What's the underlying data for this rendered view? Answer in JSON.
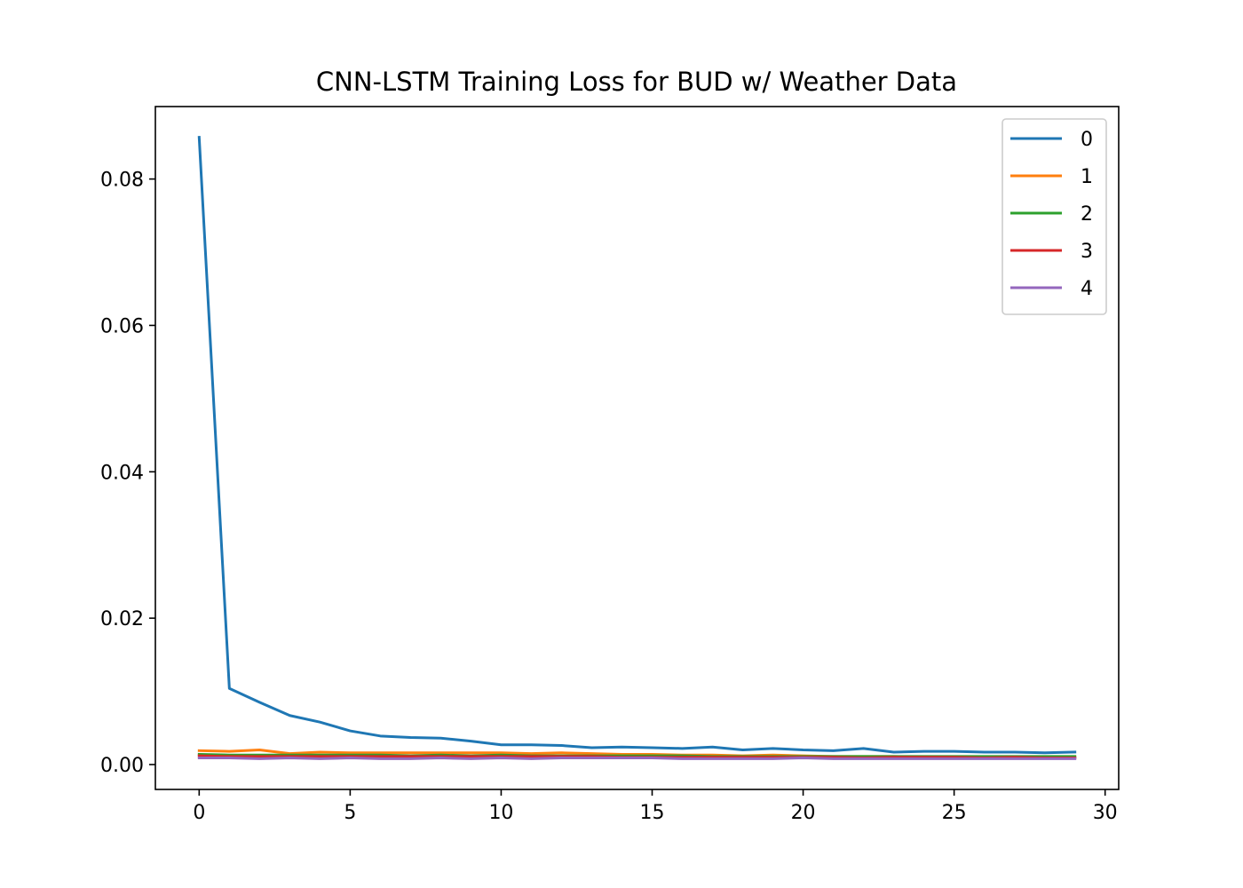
{
  "chart_data": {
    "type": "line",
    "title": "CNN-LSTM Training Loss for BUD w/ Weather Data",
    "xlabel": "",
    "ylabel": "",
    "xlim": [
      -1.45,
      30.45
    ],
    "ylim": [
      -0.0034,
      0.0899
    ],
    "xticks": [
      0,
      5,
      10,
      15,
      20,
      25,
      30
    ],
    "xtick_labels": [
      "0",
      "5",
      "10",
      "15",
      "20",
      "25",
      "30"
    ],
    "yticks": [
      0.0,
      0.02,
      0.04,
      0.06,
      0.08
    ],
    "ytick_labels": [
      "0.00",
      "0.02",
      "0.04",
      "0.06",
      "0.08"
    ],
    "grid": false,
    "legend_position": "top-right",
    "x": [
      0,
      1,
      2,
      3,
      4,
      5,
      6,
      7,
      8,
      9,
      10,
      11,
      12,
      13,
      14,
      15,
      16,
      17,
      18,
      19,
      20,
      21,
      22,
      23,
      24,
      25,
      26,
      27,
      28,
      29
    ],
    "series": [
      {
        "name": "0",
        "color": "#1f77b4",
        "values": [
          0.0857,
          0.0104,
          0.0085,
          0.0067,
          0.0058,
          0.0046,
          0.0039,
          0.0037,
          0.0036,
          0.0032,
          0.0027,
          0.0027,
          0.0026,
          0.0023,
          0.0024,
          0.0023,
          0.0022,
          0.0024,
          0.002,
          0.0022,
          0.002,
          0.0019,
          0.0022,
          0.0017,
          0.0018,
          0.0018,
          0.0017,
          0.0017,
          0.0016,
          0.0017
        ]
      },
      {
        "name": "1",
        "color": "#ff7f0e",
        "values": [
          0.0019,
          0.0018,
          0.002,
          0.0015,
          0.0017,
          0.0016,
          0.0016,
          0.0016,
          0.0016,
          0.0016,
          0.0016,
          0.0015,
          0.0016,
          0.0015,
          0.0014,
          0.0014,
          0.0013,
          0.0013,
          0.0012,
          0.0013,
          0.0012,
          0.0011,
          0.0011,
          0.0011,
          0.001,
          0.001,
          0.001,
          0.001,
          0.001,
          0.001
        ]
      },
      {
        "name": "2",
        "color": "#2ca02c",
        "values": [
          0.0014,
          0.0013,
          0.0013,
          0.0013,
          0.0013,
          0.0013,
          0.0013,
          0.0012,
          0.0013,
          0.0012,
          0.0013,
          0.0012,
          0.0012,
          0.0012,
          0.0012,
          0.0012,
          0.0012,
          0.0011,
          0.0011,
          0.0011,
          0.0011,
          0.0011,
          0.0011,
          0.0011,
          0.0011,
          0.0011,
          0.0011,
          0.0011,
          0.0011,
          0.0011
        ]
      },
      {
        "name": "3",
        "color": "#d62728",
        "values": [
          0.0012,
          0.0011,
          0.0011,
          0.0011,
          0.0011,
          0.0011,
          0.0011,
          0.0011,
          0.0011,
          0.0011,
          0.0011,
          0.0011,
          0.0011,
          0.0011,
          0.001,
          0.001,
          0.001,
          0.001,
          0.001,
          0.001,
          0.001,
          0.001,
          0.0009,
          0.001,
          0.001,
          0.001,
          0.0009,
          0.001,
          0.0009,
          0.0009
        ]
      },
      {
        "name": "4",
        "color": "#9467bd",
        "values": [
          0.0009,
          0.0009,
          0.0008,
          0.0009,
          0.0008,
          0.0009,
          0.0008,
          0.0008,
          0.0009,
          0.0008,
          0.0009,
          0.0008,
          0.0009,
          0.0009,
          0.0009,
          0.0009,
          0.0008,
          0.0008,
          0.0008,
          0.0008,
          0.0009,
          0.0008,
          0.0008,
          0.0008,
          0.0008,
          0.0008,
          0.0008,
          0.0008,
          0.0008,
          0.0008
        ]
      }
    ]
  }
}
